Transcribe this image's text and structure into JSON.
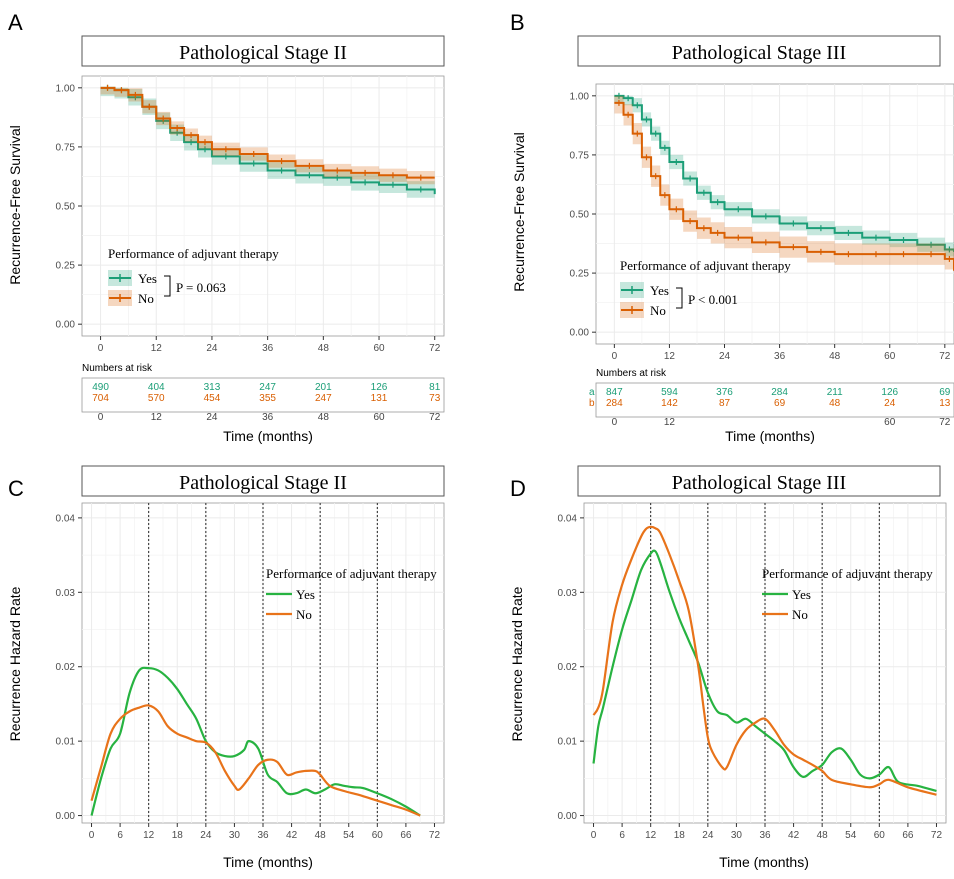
{
  "colors": {
    "yes": "#1b9e77",
    "no": "#d95f02",
    "yes_hz": "#27b341",
    "no_hz": "#e8731a",
    "grid": "#ebebeb"
  },
  "chart_data": [
    {
      "panel": "A",
      "type": "line",
      "title": "Pathological Stage II",
      "xlabel": "Time (months)",
      "ylabel": "Recurrence-Free Survival",
      "xlim": [
        -4,
        74
      ],
      "ylim": [
        -0.05,
        1.05
      ],
      "xticks": [
        0,
        12,
        24,
        36,
        48,
        60,
        72
      ],
      "yticks": [
        0,
        0.25,
        0.5,
        0.75,
        1.0
      ],
      "ytick_labels": [
        "0.00",
        "0.25",
        "0.50",
        "0.75",
        "1.00"
      ],
      "grid": true,
      "legend_title": "Performance of adjuvant therapy",
      "p_value": "P = 0.063",
      "series": [
        {
          "name": "Yes",
          "x": [
            0,
            3,
            6,
            9,
            12,
            15,
            18,
            21,
            24,
            30,
            36,
            42,
            48,
            54,
            60,
            66,
            72
          ],
          "y": [
            1.0,
            0.99,
            0.96,
            0.92,
            0.86,
            0.81,
            0.77,
            0.74,
            0.71,
            0.68,
            0.65,
            0.63,
            0.62,
            0.6,
            0.59,
            0.57,
            0.55
          ],
          "ci": 0.035
        },
        {
          "name": "No",
          "x": [
            0,
            3,
            6,
            9,
            12,
            15,
            18,
            21,
            24,
            30,
            36,
            42,
            48,
            54,
            60,
            66,
            72
          ],
          "y": [
            1.0,
            0.99,
            0.97,
            0.92,
            0.87,
            0.83,
            0.8,
            0.77,
            0.74,
            0.72,
            0.69,
            0.67,
            0.65,
            0.64,
            0.63,
            0.62,
            0.62
          ],
          "ci": 0.028
        }
      ],
      "risk_table": {
        "title": "Numbers at risk",
        "times": [
          0,
          12,
          24,
          36,
          48,
          60,
          72
        ],
        "rows": [
          {
            "name": "Yes",
            "values": [
              "490",
              "404",
              "313",
              "247",
              "201",
              "126",
              "81"
            ]
          },
          {
            "name": "No",
            "values": [
              "704",
              "570",
              "454",
              "355",
              "247",
              "131",
              "73"
            ]
          }
        ]
      }
    },
    {
      "panel": "B",
      "type": "line",
      "title": "Pathological Stage III",
      "xlabel": "Time (months)",
      "ylabel": "Recurrence-Free Survival",
      "xlim": [
        -4,
        74
      ],
      "ylim": [
        -0.05,
        1.05
      ],
      "xticks": [
        0,
        12,
        24,
        36,
        48,
        60,
        72
      ],
      "yticks": [
        0,
        0.25,
        0.5,
        0.75,
        1.0
      ],
      "ytick_labels": [
        "0.00",
        "0.25",
        "0.50",
        "0.75",
        "1.00"
      ],
      "grid": true,
      "legend_title": "Performance of adjuvant therapy",
      "p_value": "P < 0.001",
      "series": [
        {
          "name": "Yes",
          "x": [
            0,
            2,
            4,
            6,
            8,
            10,
            12,
            15,
            18,
            21,
            24,
            30,
            36,
            42,
            48,
            54,
            60,
            66,
            72,
            74
          ],
          "y": [
            1.0,
            0.99,
            0.96,
            0.9,
            0.84,
            0.78,
            0.72,
            0.65,
            0.59,
            0.55,
            0.52,
            0.49,
            0.46,
            0.44,
            0.42,
            0.4,
            0.39,
            0.37,
            0.35,
            0.34
          ],
          "ci": 0.03
        },
        {
          "name": "No",
          "x": [
            0,
            2,
            4,
            6,
            8,
            10,
            12,
            15,
            18,
            21,
            24,
            30,
            36,
            42,
            48,
            54,
            60,
            66,
            72,
            74
          ],
          "y": [
            0.97,
            0.92,
            0.84,
            0.74,
            0.66,
            0.58,
            0.52,
            0.47,
            0.44,
            0.42,
            0.4,
            0.38,
            0.36,
            0.34,
            0.33,
            0.33,
            0.33,
            0.33,
            0.31,
            0.26
          ],
          "ci": 0.045
        }
      ],
      "risk_table": {
        "title": "Numbers at risk",
        "times": [
          0,
          12,
          24,
          36,
          48,
          60,
          72
        ],
        "time_labels": [
          "0",
          "12",
          "",
          "",
          "",
          "60",
          "72"
        ],
        "rows": [
          {
            "name": "Yes",
            "marker": "a",
            "values": [
              "847",
              "594",
              "376",
              "284",
              "211",
              "126",
              "69"
            ]
          },
          {
            "name": "No",
            "marker": "b",
            "values": [
              "284",
              "142",
              "87",
              "69",
              "48",
              "24",
              "13"
            ]
          }
        ]
      }
    },
    {
      "panel": "C",
      "type": "line",
      "title": "Pathological Stage II",
      "xlabel": "Time (months)",
      "ylabel": "Recurrence Hazard Rate",
      "xlim": [
        -2,
        74
      ],
      "ylim": [
        -0.001,
        0.042
      ],
      "xticks": [
        0,
        6,
        12,
        18,
        24,
        30,
        36,
        42,
        48,
        54,
        60,
        66,
        72
      ],
      "yticks": [
        0,
        0.01,
        0.02,
        0.03,
        0.04
      ],
      "ytick_labels": [
        "0.00",
        "0.01",
        "0.02",
        "0.03",
        "0.04"
      ],
      "vlines": [
        12,
        24,
        36,
        48,
        60
      ],
      "grid": true,
      "legend_title": "Performance of adjuvant therapy",
      "series": [
        {
          "name": "Yes",
          "x": [
            0,
            2,
            4,
            6,
            8,
            10,
            12,
            14,
            16,
            18,
            20,
            22,
            24,
            26,
            28,
            30,
            32,
            33,
            35,
            37,
            39,
            41,
            43,
            45,
            47,
            49,
            51,
            53,
            55,
            57,
            60,
            63,
            66,
            69
          ],
          "y": [
            0.0,
            0.005,
            0.009,
            0.011,
            0.0165,
            0.0195,
            0.0198,
            0.0195,
            0.0185,
            0.017,
            0.015,
            0.013,
            0.01,
            0.0085,
            0.008,
            0.008,
            0.0088,
            0.01,
            0.009,
            0.0055,
            0.0045,
            0.003,
            0.003,
            0.0035,
            0.003,
            0.0035,
            0.0042,
            0.004,
            0.0038,
            0.0037,
            0.003,
            0.0022,
            0.0012,
            0.0
          ]
        },
        {
          "name": "No",
          "x": [
            0,
            2,
            4,
            6,
            8,
            10,
            12,
            14,
            16,
            18,
            20,
            22,
            24,
            26,
            28,
            30,
            31,
            33,
            35,
            37,
            39,
            41,
            43,
            45,
            47,
            48,
            50,
            53,
            56,
            60,
            63,
            66,
            69
          ],
          "y": [
            0.002,
            0.0065,
            0.011,
            0.013,
            0.014,
            0.0145,
            0.0148,
            0.014,
            0.012,
            0.011,
            0.0105,
            0.01,
            0.0098,
            0.0085,
            0.006,
            0.004,
            0.0035,
            0.005,
            0.0068,
            0.0075,
            0.0072,
            0.0055,
            0.0058,
            0.006,
            0.006,
            0.0055,
            0.004,
            0.0033,
            0.0028,
            0.002,
            0.0014,
            0.0008,
            0.0
          ]
        }
      ]
    },
    {
      "panel": "D",
      "type": "line",
      "title": "Pathological Stage III",
      "xlabel": "Time (months)",
      "ylabel": "Recurrence Hazard Rate",
      "xlim": [
        -2,
        74
      ],
      "ylim": [
        -0.001,
        0.042
      ],
      "xticks": [
        0,
        6,
        12,
        18,
        24,
        30,
        36,
        42,
        48,
        54,
        60,
        66,
        72
      ],
      "yticks": [
        0,
        0.01,
        0.02,
        0.03,
        0.04
      ],
      "ytick_labels": [
        "0.00",
        "0.01",
        "0.02",
        "0.03",
        "0.04"
      ],
      "vlines": [
        12,
        24,
        36,
        48,
        60
      ],
      "grid": true,
      "legend_title": "Performance of adjuvant therapy",
      "series": [
        {
          "name": "Yes",
          "x": [
            0,
            1,
            2,
            4,
            6,
            8,
            10,
            12,
            13,
            14,
            16,
            18,
            20,
            22,
            24,
            26,
            28,
            30,
            32,
            34,
            36,
            38,
            40,
            42,
            44,
            46,
            48,
            50,
            52,
            54,
            56,
            58,
            60,
            62,
            64,
            68,
            72
          ],
          "y": [
            0.007,
            0.012,
            0.0145,
            0.02,
            0.025,
            0.029,
            0.033,
            0.0352,
            0.0355,
            0.034,
            0.03,
            0.0265,
            0.0235,
            0.0205,
            0.0165,
            0.014,
            0.0135,
            0.0125,
            0.013,
            0.012,
            0.011,
            0.01,
            0.0088,
            0.0065,
            0.0052,
            0.006,
            0.0068,
            0.0085,
            0.009,
            0.0075,
            0.0055,
            0.005,
            0.0055,
            0.0065,
            0.0045,
            0.004,
            0.0033
          ]
        },
        {
          "name": "No",
          "x": [
            0,
            1,
            2,
            4,
            6,
            8,
            10,
            11,
            12,
            13,
            14,
            16,
            18,
            20,
            22,
            23,
            24,
            25,
            27,
            28,
            30,
            32,
            34,
            36,
            38,
            40,
            42,
            44,
            46,
            48,
            50,
            54,
            58,
            60,
            62,
            66,
            72
          ],
          "y": [
            0.0135,
            0.0145,
            0.017,
            0.026,
            0.031,
            0.0345,
            0.0375,
            0.0385,
            0.0388,
            0.0386,
            0.038,
            0.035,
            0.0315,
            0.0275,
            0.02,
            0.015,
            0.0105,
            0.0085,
            0.0065,
            0.0065,
            0.0095,
            0.0115,
            0.0125,
            0.013,
            0.0115,
            0.0095,
            0.0082,
            0.0075,
            0.0068,
            0.006,
            0.0048,
            0.0042,
            0.0038,
            0.0042,
            0.0048,
            0.0038,
            0.0028
          ]
        }
      ]
    }
  ]
}
